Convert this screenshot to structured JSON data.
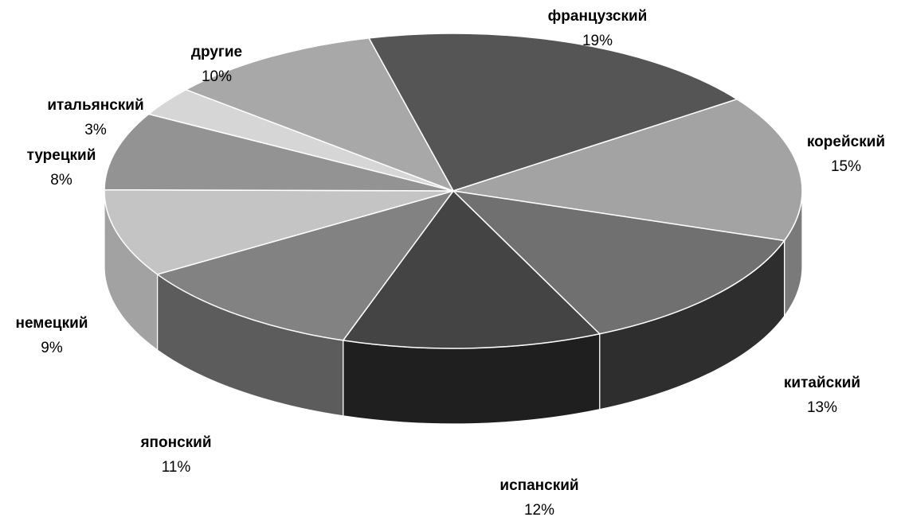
{
  "chart_data": {
    "type": "pie",
    "style": "3d",
    "legend": "none",
    "slices": [
      {
        "label": "французский",
        "value": 19,
        "value_label": "19%",
        "color": "#555555",
        "side_color": "#3a3a3a"
      },
      {
        "label": "корейский",
        "value": 15,
        "value_label": "15%",
        "color": "#a3a3a3",
        "side_color": "#7a7a7a"
      },
      {
        "label": "китайский",
        "value": 13,
        "value_label": "13%",
        "color": "#707070",
        "side_color": "#2e2e2e"
      },
      {
        "label": "испанский",
        "value": 12,
        "value_label": "12%",
        "color": "#444444",
        "side_color": "#1f1f1f"
      },
      {
        "label": "японский",
        "value": 11,
        "value_label": "11%",
        "color": "#828282",
        "side_color": "#5c5c5c"
      },
      {
        "label": "немецкий",
        "value": 9,
        "value_label": "9%",
        "color": "#c4c4c4",
        "side_color": "#a2a2a2"
      },
      {
        "label": "турецкий",
        "value": 8,
        "value_label": "8%",
        "color": "#939393",
        "side_color": "#6e6e6e"
      },
      {
        "label": "итальянский",
        "value": 3,
        "value_label": "3%",
        "color": "#d6d6d6",
        "side_color": "#b0b0b0"
      },
      {
        "label": "другие",
        "value": 10,
        "value_label": "10%",
        "color": "#a8a8a8",
        "side_color": "#888888"
      }
    ]
  }
}
